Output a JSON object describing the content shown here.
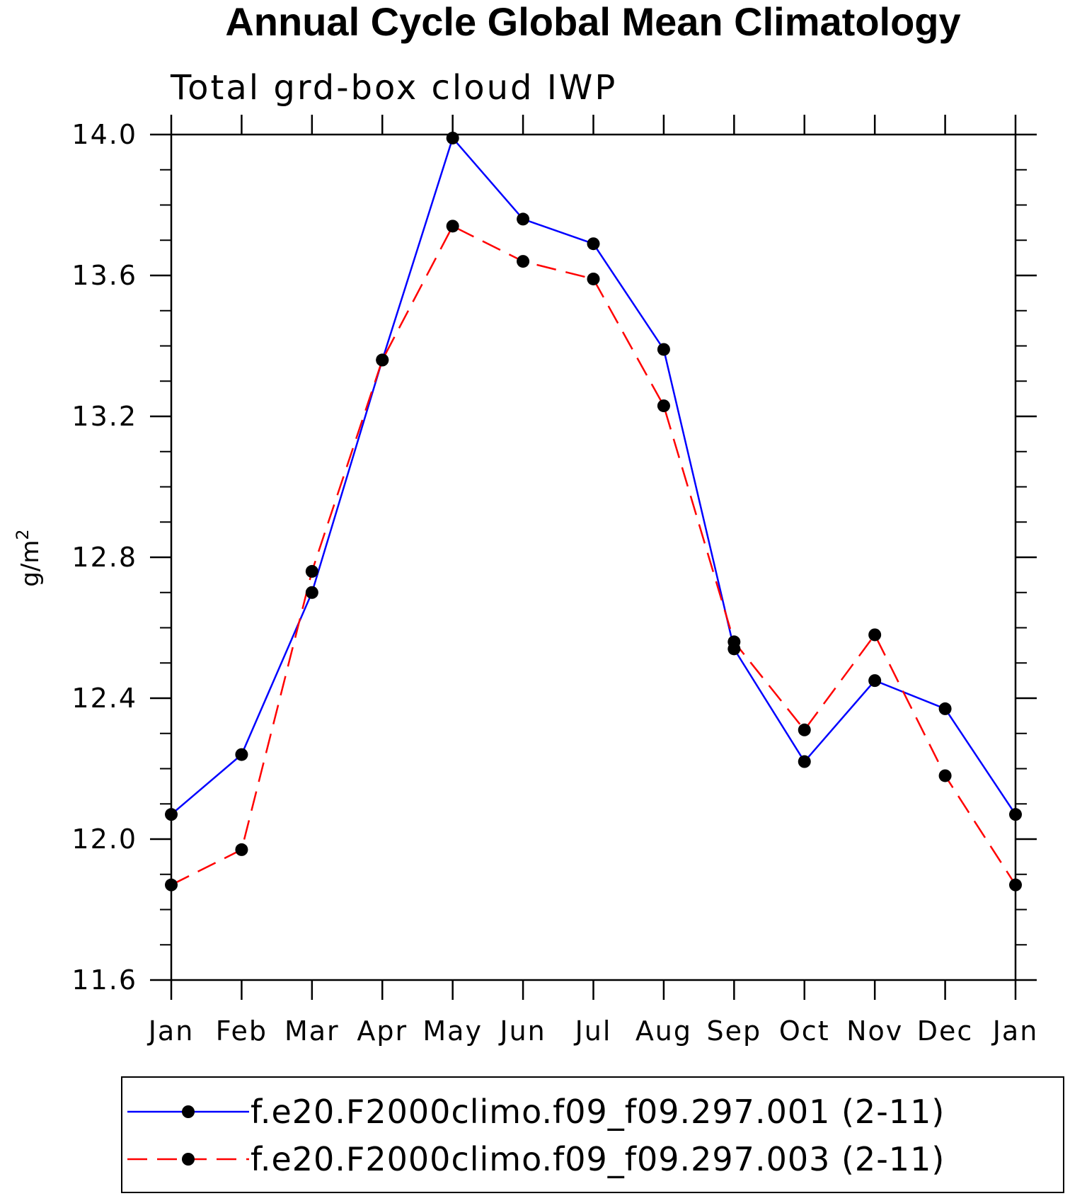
{
  "chart_data": {
    "type": "line",
    "title": "Annual Cycle Global Mean Climatology",
    "subtitle": "Total grd-box cloud IWP",
    "ylabel": "g/m",
    "ylabel_superscript": "2",
    "ylim": [
      11.6,
      14.0
    ],
    "yticks": [
      11.6,
      12.0,
      12.4,
      12.8,
      13.2,
      13.6,
      14.0
    ],
    "ytick_labels": [
      "11.6",
      "12.0",
      "12.4",
      "12.8",
      "13.2",
      "13.6",
      "14.0"
    ],
    "categories": [
      "Jan",
      "Feb",
      "Mar",
      "Apr",
      "May",
      "Jun",
      "Jul",
      "Aug",
      "Sep",
      "Oct",
      "Nov",
      "Dec",
      "Jan"
    ],
    "legend_position": "bottom",
    "series": [
      {
        "name": "f.e20.F2000climo.f09_f09.297.001 (2-11)",
        "color": "#0000ff",
        "dash": "solid",
        "marker": "filled-circle",
        "values": [
          12.07,
          12.24,
          12.7,
          13.36,
          13.99,
          13.76,
          13.69,
          13.39,
          12.54,
          12.22,
          12.45,
          12.37,
          12.07
        ]
      },
      {
        "name": "f.e20.F2000climo.f09_f09.297.003 (2-11)",
        "color": "#ff0000",
        "dash": "dashed",
        "marker": "filled-circle",
        "values": [
          11.87,
          11.97,
          12.76,
          13.36,
          13.74,
          13.64,
          13.59,
          13.23,
          12.56,
          12.31,
          12.58,
          12.18,
          11.87
        ]
      }
    ]
  }
}
